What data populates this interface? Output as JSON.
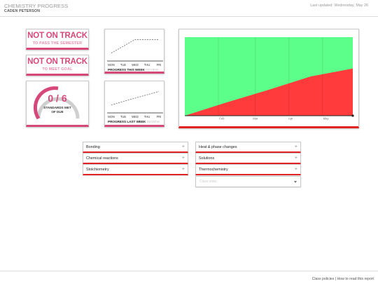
{
  "header": {
    "title": "CHEMISTRY PROGRESS",
    "student": "CADEN PETERSON",
    "updated": "Last updated: Wednesday, May 26"
  },
  "status_semester": {
    "title": "NOT ON TRACK",
    "subtitle": "TO PASS THE SEMESTER"
  },
  "status_goal": {
    "title": "NOT ON TRACK",
    "subtitle": "TO MEET GOAL"
  },
  "standards": {
    "value": "0 / 6",
    "label_line1": "STANDARDS MET",
    "label_line2": "OF DUE",
    "fraction_met": 0
  },
  "colors": {
    "accent": "#d6487a",
    "on_track": "#5cff8a",
    "behind": "#ff3b3b",
    "border_red": "#e32222"
  },
  "progress_this_week": {
    "days": [
      "MON",
      "TUE",
      "WED",
      "THU",
      "FRI"
    ],
    "label": "PROGRESS THIS WEEK",
    "label_muted": "REVIEW",
    "chart_data": {
      "type": "line",
      "categories": [
        "MON",
        "TUE",
        "WED",
        "THU",
        "FRI"
      ],
      "values": [
        0.2,
        0.5,
        0.8,
        0.8,
        0.8
      ]
    }
  },
  "progress_last_week": {
    "days": [
      "MON",
      "TUE",
      "WED",
      "THU",
      "FRI"
    ],
    "label": "PROGRESS LAST WEEK",
    "label_muted": "REVIEW",
    "chart_data": {
      "type": "line",
      "categories": [
        "MON",
        "TUE",
        "WED",
        "THU",
        "FRI"
      ],
      "values": [
        0.2,
        0.35,
        0.5,
        0.65,
        0.8
      ]
    }
  },
  "chart_data": {
    "type": "area",
    "x_ticks": [
      "Feb",
      "Mar",
      "Apr",
      "May"
    ],
    "x": [
      0,
      0.25,
      0.5,
      0.75,
      1
    ],
    "series": [
      {
        "values": [
          0.0,
          0.17,
          0.33,
          0.5,
          0.6
        ]
      }
    ],
    "ylim": [
      0,
      1
    ],
    "grid": true
  },
  "topics_left": [
    {
      "label": "Bonding"
    },
    {
      "label": "Chemical reactions"
    },
    {
      "label": "Stoichiometry"
    }
  ],
  "topics_right": [
    {
      "label": "Heat & phase changes"
    },
    {
      "label": "Solutions"
    },
    {
      "label": "Thermochemistry"
    }
  ],
  "select": {
    "placeholder": "Class stats"
  },
  "footer": {
    "links": "Class policies | How to read this report"
  }
}
